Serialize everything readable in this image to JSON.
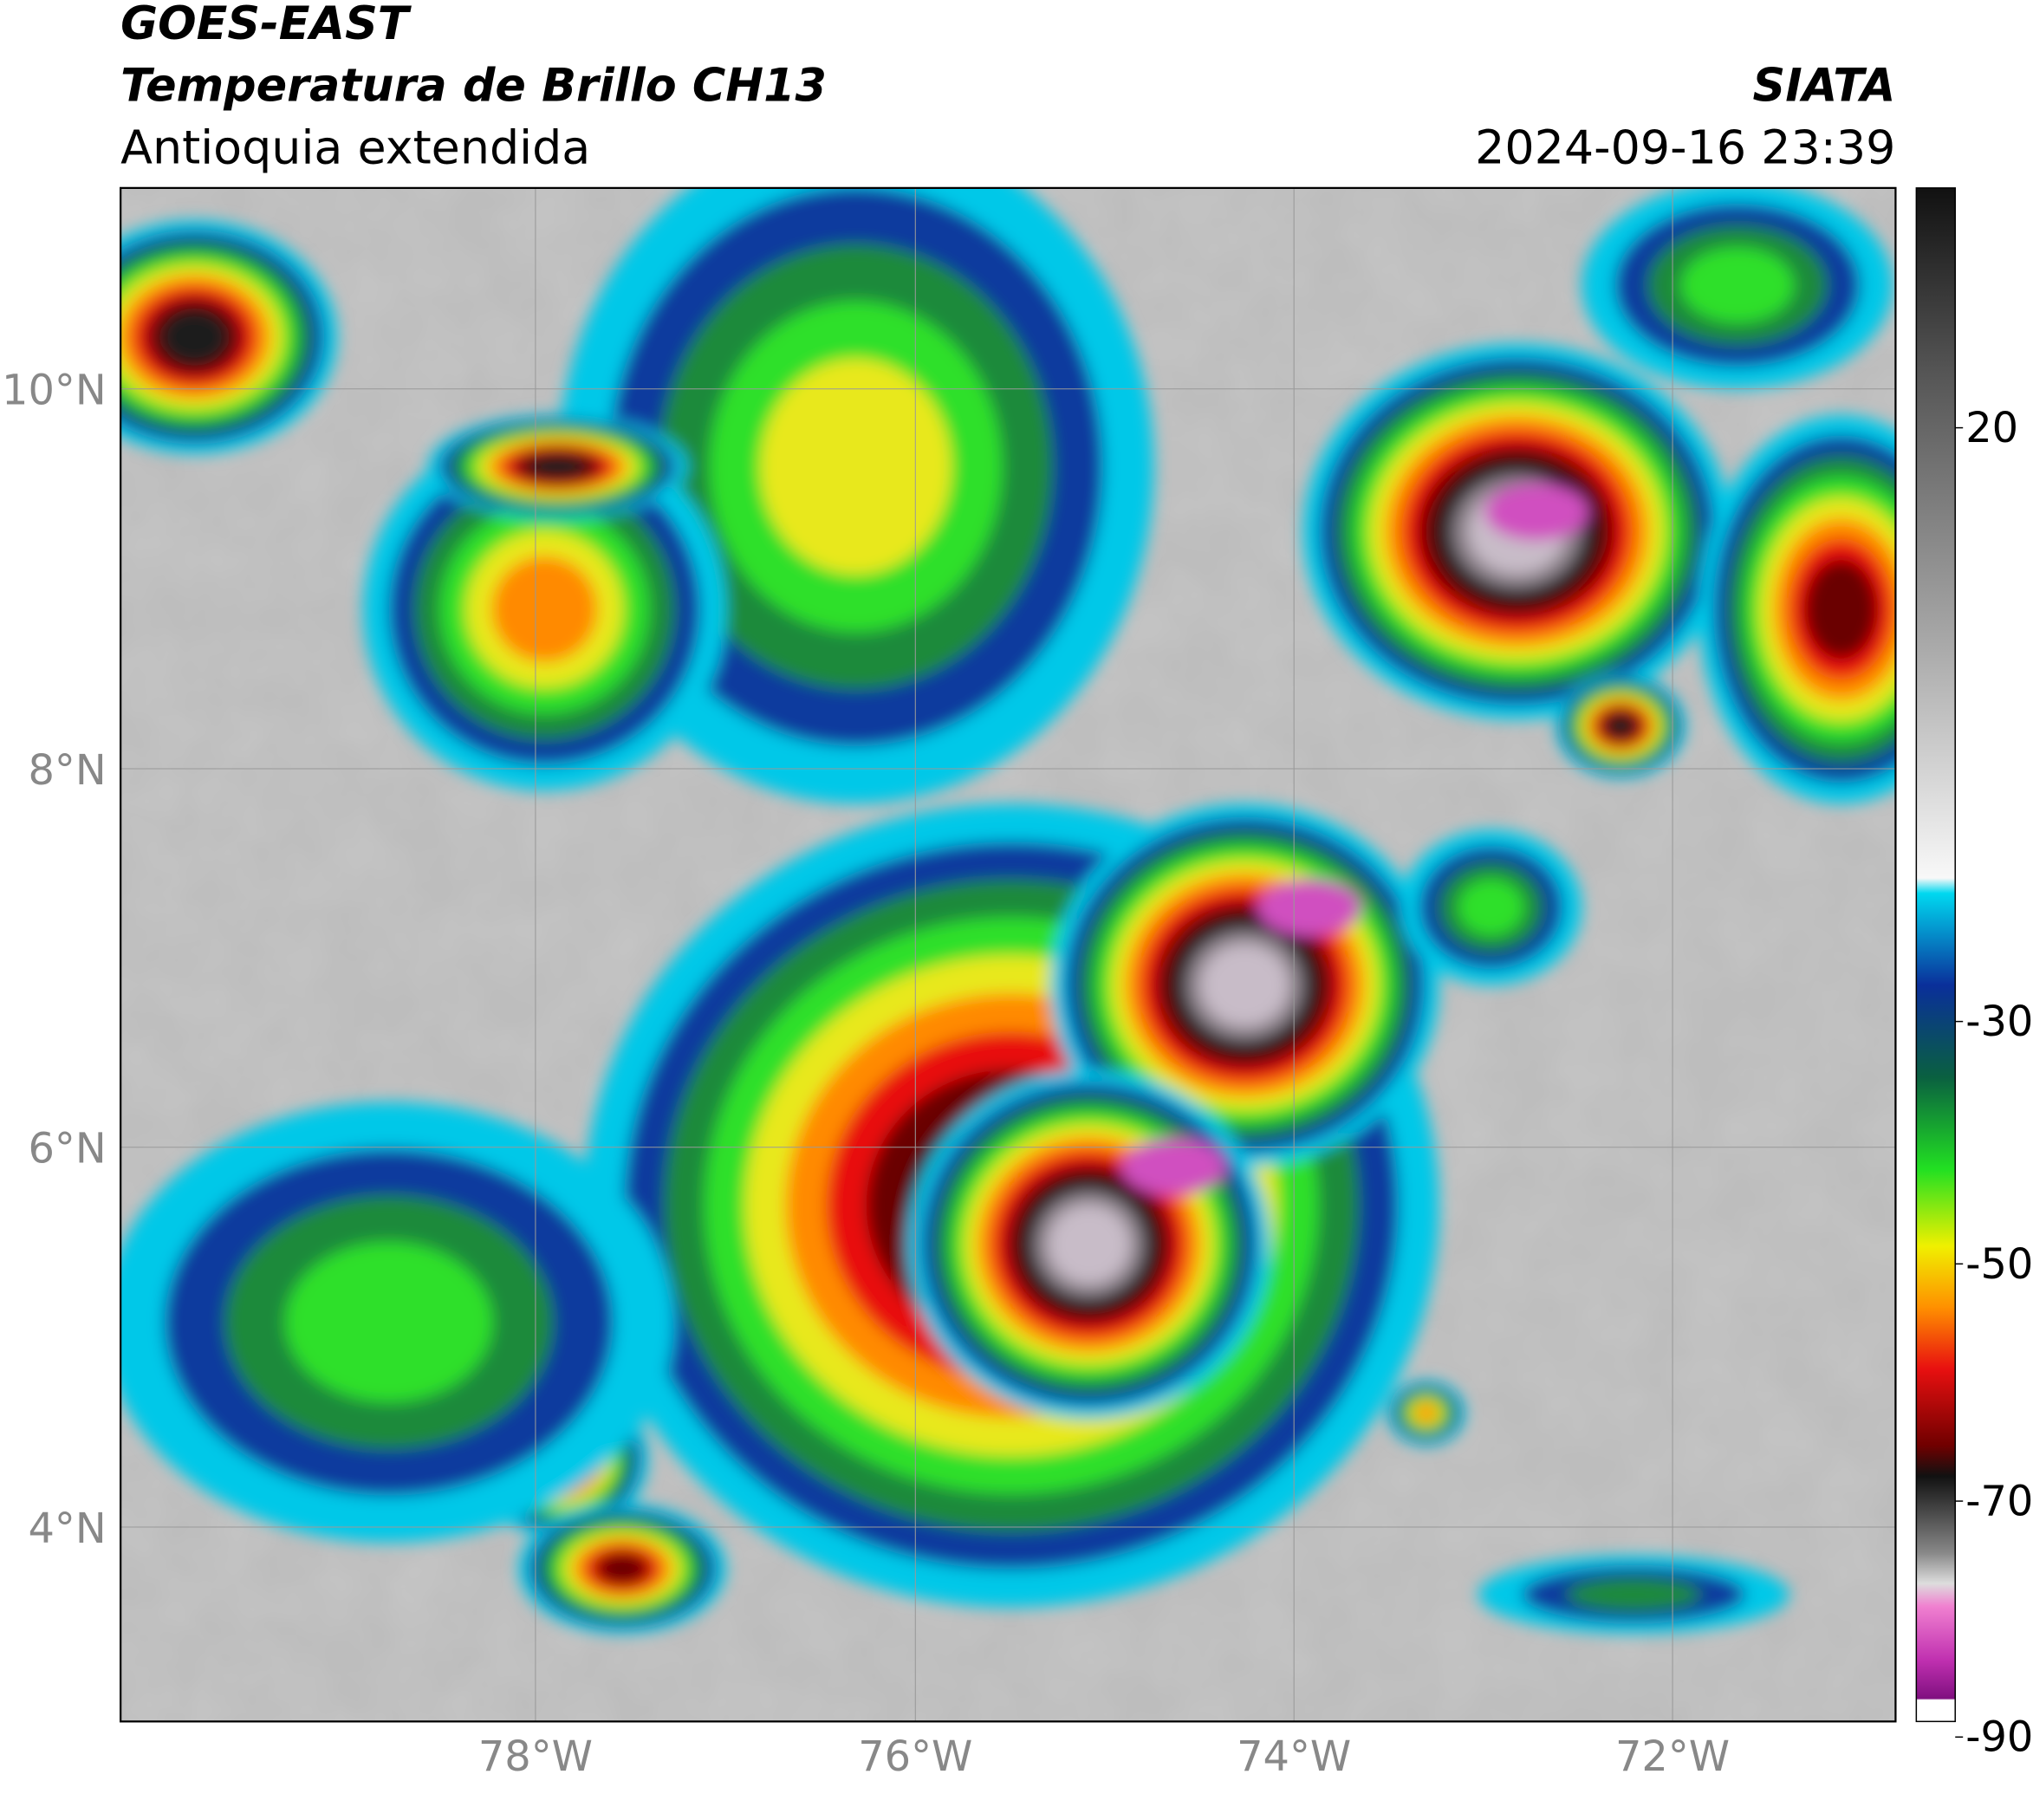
{
  "header": {
    "satellite": "GOES-EAST",
    "product": "Temperatura de Brillo CH13",
    "region": "Antioquia extendida",
    "agency": "SIATA",
    "timestamp": "2024-09-16 23:39"
  },
  "map": {
    "lat_labels": [
      "10°N",
      "8°N",
      "6°N",
      "4°N"
    ],
    "lon_labels": [
      "78°W",
      "76°W",
      "74°W",
      "72°W"
    ]
  },
  "colorbar": {
    "labels": [
      "20",
      "-30",
      "-50",
      "-70",
      "-90"
    ]
  }
}
